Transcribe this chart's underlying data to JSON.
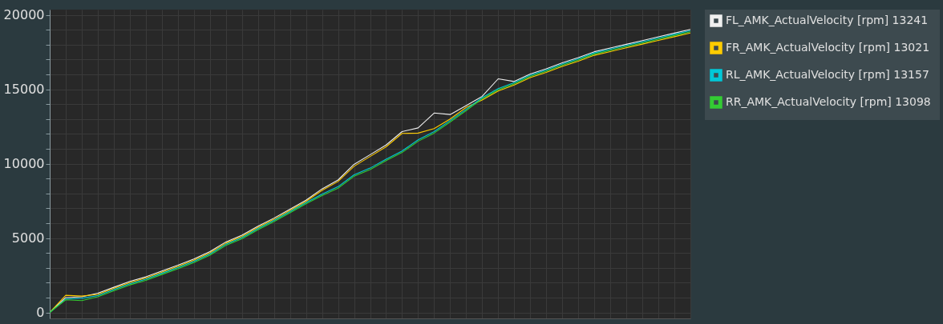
{
  "chart_data": {
    "type": "line",
    "categories": [
      null,
      null,
      null,
      null,
      null,
      null,
      null,
      null,
      null,
      null,
      null,
      null,
      null,
      null,
      null,
      null,
      null,
      null,
      null,
      null,
      null,
      null,
      null,
      null,
      null,
      null,
      null,
      null,
      null,
      null,
      null,
      null,
      null,
      null,
      null,
      null,
      null,
      null,
      null,
      null,
      null
    ],
    "series": [
      {
        "name": "FL_AMK_ActualVelocity [rpm]  13241",
        "color": "#f0f0f0",
        "values": [
          0,
          1000,
          1050,
          1290,
          1690,
          2090,
          2390,
          2790,
          3170,
          3590,
          4090,
          4740,
          5190,
          5790,
          6340,
          6940,
          7540,
          8300,
          8900,
          9950,
          10600,
          11250,
          12150,
          12400,
          13400,
          13300,
          13900,
          14520,
          15700,
          15520,
          16020,
          16370,
          16770,
          17120,
          17520,
          17770,
          18020,
          18270,
          18520,
          18770,
          19020
        ]
      },
      {
        "name": "FR_AMK_ActualVelocity [rpm]  13021",
        "color": "#ffcc00",
        "values": [
          0,
          1150,
          1100,
          1210,
          1610,
          2010,
          2310,
          2710,
          3090,
          3510,
          4010,
          4660,
          5110,
          5710,
          6260,
          6860,
          7460,
          8200,
          8800,
          9820,
          10480,
          11130,
          12030,
          12050,
          12350,
          13000,
          13780,
          14280,
          14880,
          15280,
          15780,
          16130,
          16530,
          16880,
          17280,
          17530,
          17780,
          18030,
          18280,
          18530,
          18780
        ]
      },
      {
        "name": "RL_AMK_ActualVelocity [rpm]  13157",
        "color": "#00c8d8",
        "values": [
          0,
          900,
          950,
          1130,
          1530,
          1930,
          2230,
          2630,
          3010,
          3430,
          3930,
          4580,
          5030,
          5630,
          6180,
          6780,
          7380,
          7950,
          8450,
          9250,
          9700,
          10300,
          10850,
          11600,
          12150,
          12900,
          13650,
          14440,
          15040,
          15440,
          15940,
          16290,
          16690,
          17040,
          17440,
          17690,
          17940,
          18190,
          18440,
          18690,
          18940
        ]
      },
      {
        "name": "RR_AMK_ActualVelocity [rpm]  13098",
        "color": "#33cc33",
        "values": [
          0,
          850,
          800,
          1050,
          1450,
          1850,
          2150,
          2550,
          2930,
          3350,
          3850,
          4500,
          4950,
          5550,
          6100,
          6700,
          7300,
          7850,
          8350,
          9150,
          9600,
          10200,
          10750,
          11500,
          12050,
          12800,
          13560,
          14360,
          14960,
          15360,
          15860,
          16210,
          16610,
          16960,
          17360,
          17610,
          17860,
          18110,
          18360,
          18610,
          18860
        ]
      }
    ],
    "ylim": [
      -400,
      20350
    ],
    "yticks": [
      0,
      {
        "value": 1000,
        "label": null
      },
      {
        "value": 2000,
        "label": null
      },
      {
        "value": 3000,
        "label": null
      },
      {
        "value": 4000,
        "label": null
      },
      5000,
      {
        "value": 6000,
        "label": null
      },
      {
        "value": 7000,
        "label": null
      },
      {
        "value": 8000,
        "label": null
      },
      {
        "value": 9000,
        "label": null
      },
      10000,
      {
        "value": 11000,
        "label": null
      },
      {
        "value": 12000,
        "label": null
      },
      {
        "value": 13000,
        "label": null
      },
      {
        "value": 14000,
        "label": null
      },
      15000,
      {
        "value": 16000,
        "label": null
      },
      {
        "value": 17000,
        "label": null
      },
      {
        "value": 18000,
        "label": null
      },
      {
        "value": 19000,
        "label": null
      },
      20000
    ],
    "grid": true,
    "legend": "right",
    "tick_labels": "y",
    "line_style": "solid",
    "marker": "none"
  }
}
